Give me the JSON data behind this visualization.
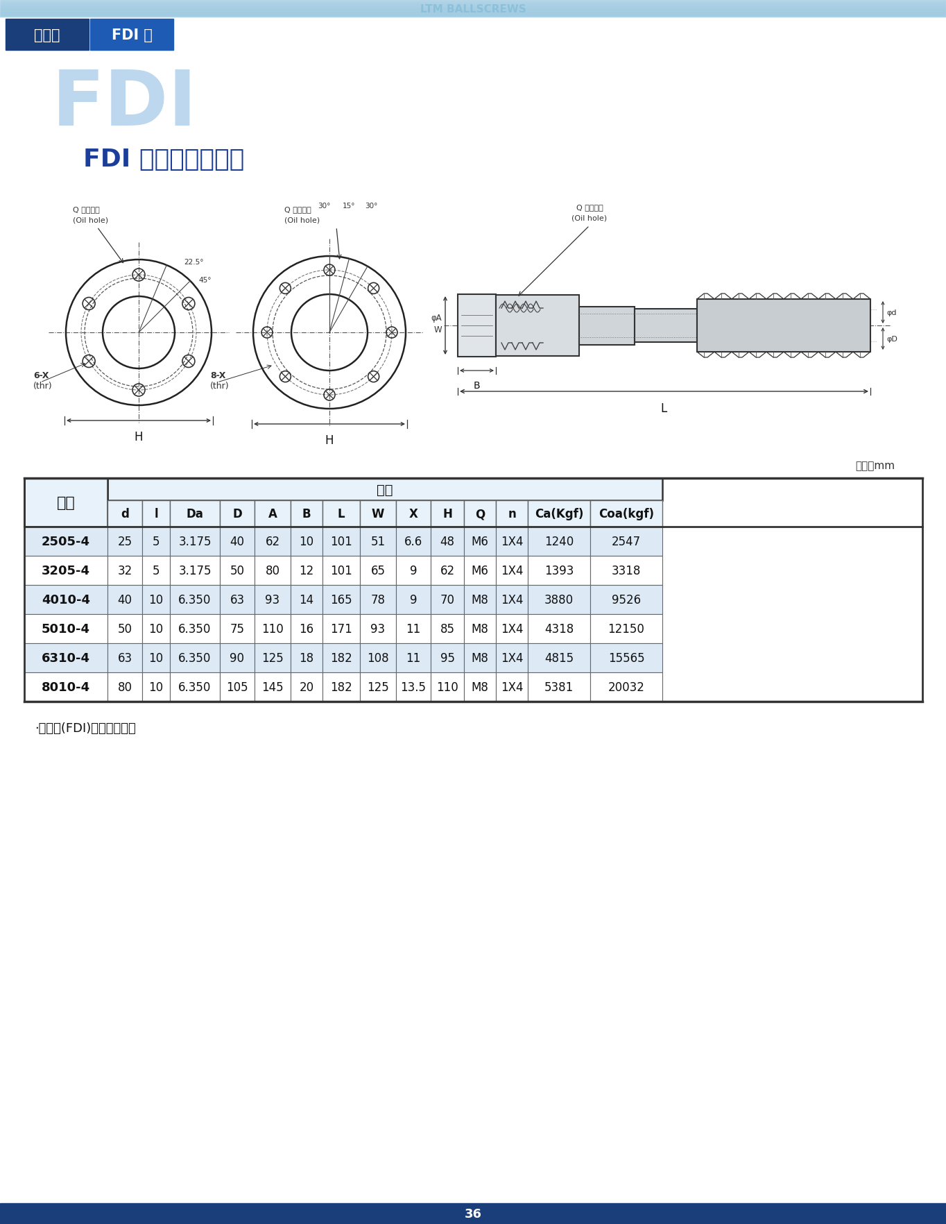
{
  "page_bg": "#ffffff",
  "header_bg1": "#1a3e7a",
  "header_bg2": "#1e5bb5",
  "top_bar_color": "#9fc8e0",
  "fdi_watermark_color": "#bdd8ee",
  "title_text": "FDI 雙螺帽內循環式",
  "header_text": "轉造級",
  "header_text2": "FDI 型",
  "unit_text": "單位：mm",
  "spec_header": "規格",
  "col_headers": [
    "型號",
    "d",
    "l",
    "Da",
    "D",
    "A",
    "B",
    "L",
    "W",
    "X",
    "H",
    "Q",
    "n",
    "Ca(Kgf)",
    "Coa(kgf)"
  ],
  "rows": [
    [
      "2505-4",
      "25",
      "5",
      "3.175",
      "40",
      "62",
      "10",
      "101",
      "51",
      "6.6",
      "48",
      "M6",
      "1X4",
      "1240",
      "2547"
    ],
    [
      "3205-4",
      "32",
      "5",
      "3.175",
      "50",
      "80",
      "12",
      "101",
      "65",
      "9",
      "62",
      "M6",
      "1X4",
      "1393",
      "3318"
    ],
    [
      "4010-4",
      "40",
      "10",
      "6.350",
      "63",
      "93",
      "14",
      "165",
      "78",
      "9",
      "70",
      "M8",
      "1X4",
      "3880",
      "9526"
    ],
    [
      "5010-4",
      "50",
      "10",
      "6.350",
      "75",
      "110",
      "16",
      "171",
      "93",
      "11",
      "85",
      "M8",
      "1X4",
      "4318",
      "12150"
    ],
    [
      "6310-4",
      "63",
      "10",
      "6.350",
      "90",
      "125",
      "18",
      "182",
      "108",
      "11",
      "95",
      "M8",
      "1X4",
      "4815",
      "15565"
    ],
    [
      "8010-4",
      "80",
      "10",
      "6.350",
      "105",
      "145",
      "20",
      "182",
      "125",
      "13.5",
      "110",
      "M8",
      "1X4",
      "5381",
      "20032"
    ]
  ],
  "note_text": "‧雙螺帽(FDI)請聯繫我們。",
  "footer_bg": "#1a3e7a",
  "footer_text": "36",
  "table_header_bg": "#e8f2fa",
  "table_row_odd_bg": "#ddeaf6",
  "table_row_even_bg": "#ffffff",
  "table_border_dark": "#333333",
  "table_border_light": "#666666"
}
